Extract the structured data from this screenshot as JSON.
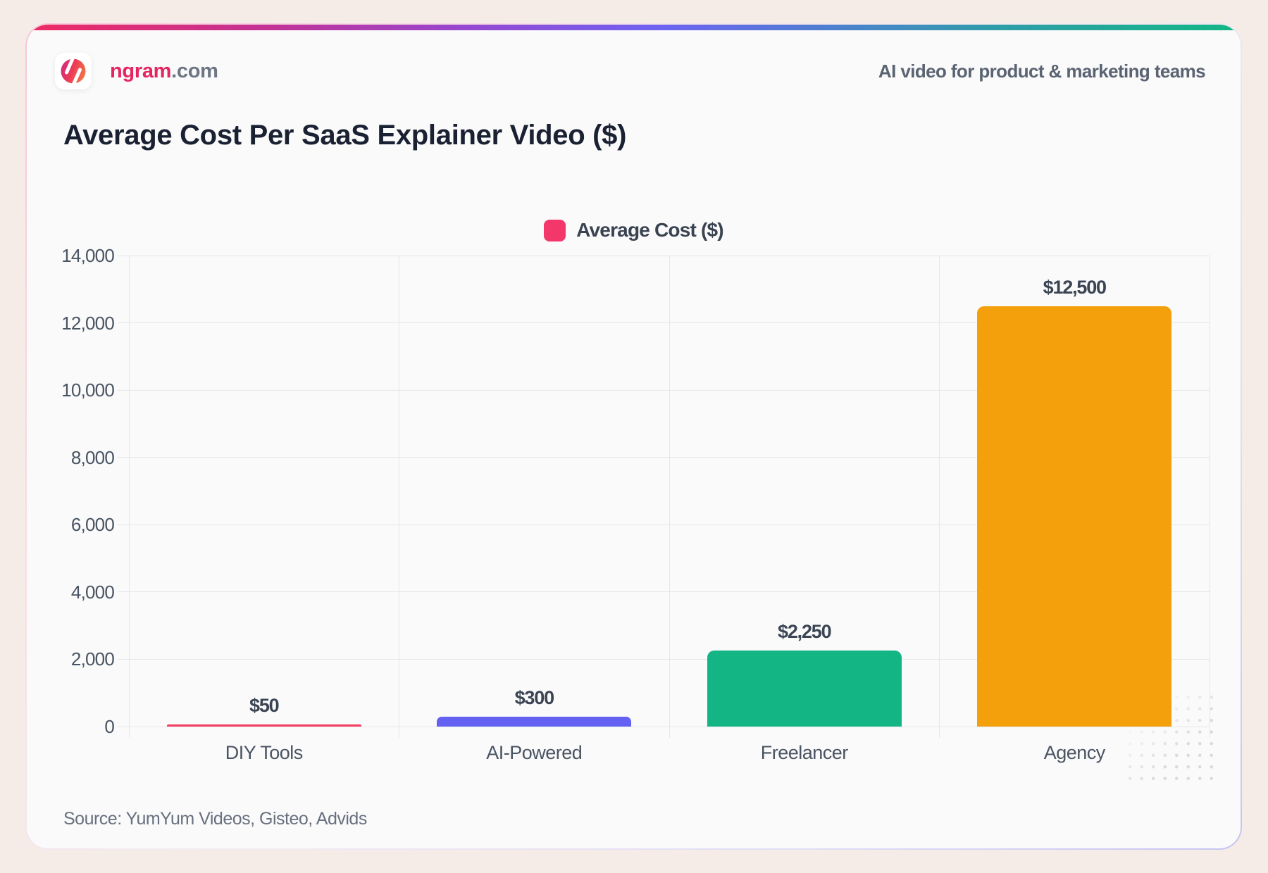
{
  "brand": {
    "logo_icon": "ngram-logo-icon",
    "name_primary": "ngram",
    "name_suffix": ".com",
    "tagline": "AI video for product & marketing teams"
  },
  "title": "Average Cost Per SaaS Explainer Video ($)",
  "legend": {
    "label": "Average Cost ($)",
    "swatch_color": "#F4376B"
  },
  "source": "Source: YumYum Videos, Gisteo, Advids",
  "chart_data": {
    "type": "bar",
    "title": "Average Cost Per SaaS Explainer Video ($)",
    "categories": [
      "DIY Tools",
      "AI-Powered",
      "Freelancer",
      "Agency"
    ],
    "values": [
      50,
      300,
      2250,
      12500
    ],
    "value_labels": [
      "$50",
      "$300",
      "$2,250",
      "$12,500"
    ],
    "bar_colors": [
      "#F43D63",
      "#6461F2",
      "#14B584",
      "#F4A00C"
    ],
    "ylabel": "",
    "xlabel": "",
    "ylim": [
      0,
      14000
    ],
    "ytick_step": 2000,
    "ytick_labels": [
      "0",
      "2,000",
      "4,000",
      "6,000",
      "8,000",
      "10,000",
      "12,000",
      "14,000"
    ],
    "legend_entries": [
      "Average Cost ($)"
    ],
    "legend_position": "top-center",
    "grid": true
  }
}
